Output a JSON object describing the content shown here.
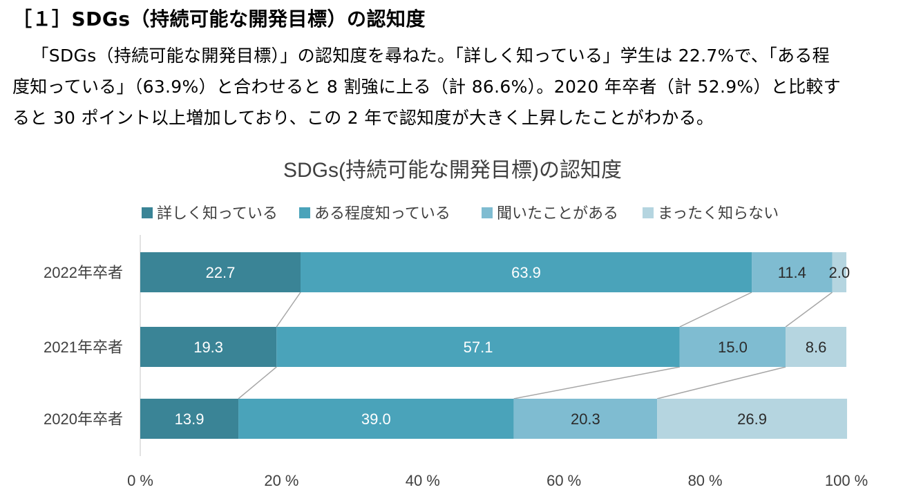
{
  "heading": "［１］SDGs（持続可能な開発目標）の認知度",
  "paragraph": {
    "line1": "「SDGs（持続可能な開発目標）」の認知度を尋ねた。「詳しく知っている」学生は 22.7%で、「ある程",
    "line2": "度知っている」（63.9%）と合わせると 8 割強に上る（計 86.6%）。2020 年卒者（計 52.9%）と比較す",
    "line3": "ると 30 ポイント以上増加しており、この 2 年で認知度が大きく上昇したことがわかる。"
  },
  "chart_data": {
    "type": "bar",
    "orientation": "horizontal",
    "stacked": true,
    "title": "SDGs(持続可能な開発目標)の認知度",
    "categories": [
      "2022年卒者",
      "2021年卒者",
      "2020年卒者"
    ],
    "series": [
      {
        "name": "詳しく知っている",
        "values": [
          22.7,
          19.3,
          13.9
        ],
        "color": "#3a8496",
        "label_color": "#ffffff"
      },
      {
        "name": "ある程度知っている",
        "values": [
          63.9,
          57.1,
          39.0
        ],
        "color": "#4aa3ba",
        "label_color": "#ffffff"
      },
      {
        "name": "聞いたことがある",
        "values": [
          11.4,
          15.0,
          20.3
        ],
        "color": "#7fbcd1",
        "label_color": "#2b2b2b"
      },
      {
        "name": "まったく知らない",
        "values": [
          2.0,
          8.6,
          26.9
        ],
        "color": "#b5d5e0",
        "label_color": "#2b2b2b"
      }
    ],
    "xlim": [
      0,
      100
    ],
    "x_ticks": [
      0,
      20,
      40,
      60,
      80,
      100
    ],
    "x_tick_labels": [
      "0",
      "20",
      "40",
      "60",
      "80",
      "100"
    ],
    "x_unit": "%",
    "legend_position": "top",
    "series_lines": true,
    "gridlines": false
  }
}
